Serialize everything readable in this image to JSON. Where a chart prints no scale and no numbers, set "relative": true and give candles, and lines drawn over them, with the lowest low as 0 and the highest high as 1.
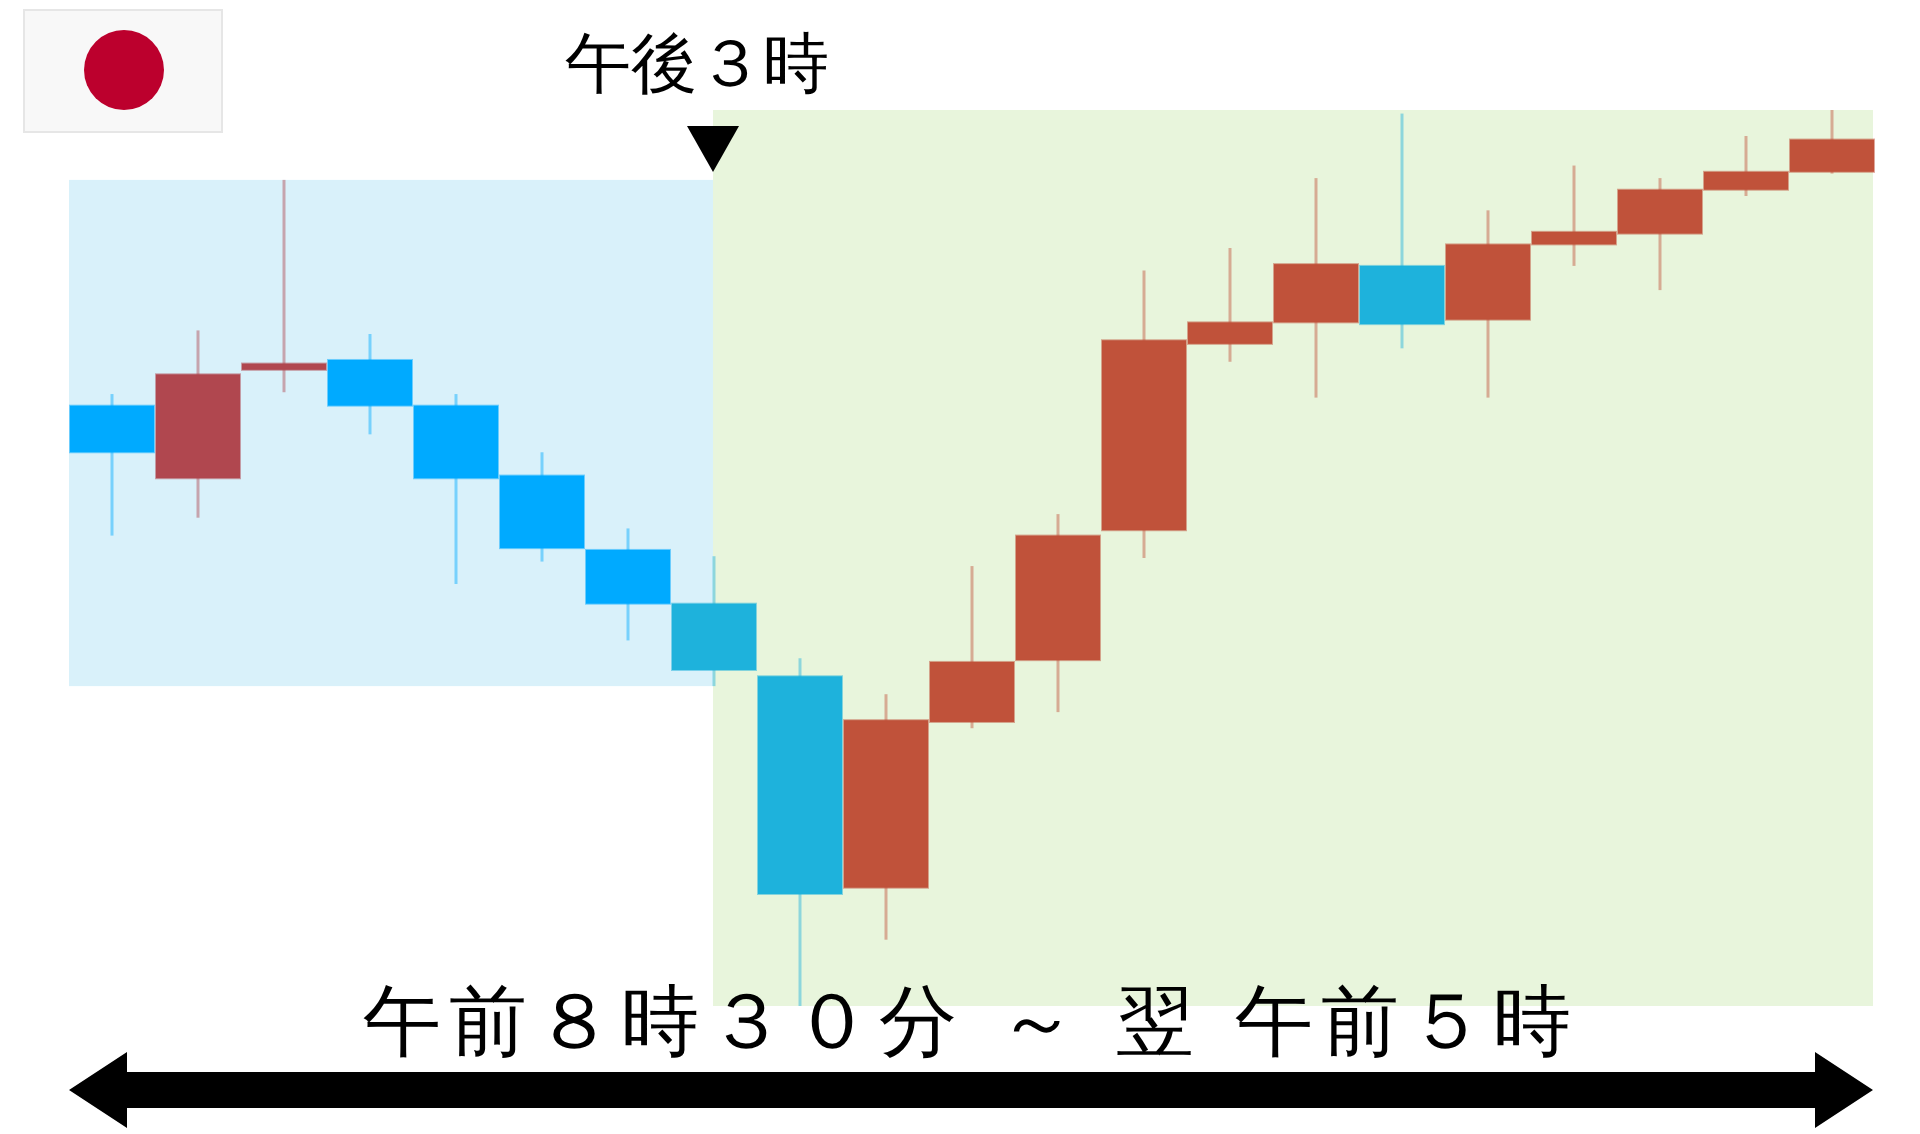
{
  "chart_data": {
    "type": "candlestick",
    "relative": true,
    "annotations": [
      "午後３時",
      "午前８時３０分 ～ 翌 午前５時"
    ],
    "categories": [
      null,
      null,
      null,
      null,
      null,
      null,
      null,
      null,
      null,
      null,
      null,
      null,
      null,
      null,
      null,
      null,
      null,
      null,
      null,
      null,
      null
    ],
    "ohlc": [
      [
        0.67,
        0.683,
        0.525,
        0.618
      ],
      [
        0.589,
        0.754,
        0.545,
        0.705
      ],
      [
        0.71,
        0.922,
        0.685,
        0.717
      ],
      [
        0.721,
        0.75,
        0.638,
        0.67
      ],
      [
        0.67,
        0.683,
        0.471,
        0.589
      ],
      [
        0.592,
        0.618,
        0.496,
        0.511
      ],
      [
        0.509,
        0.533,
        0.408,
        0.449
      ],
      [
        0.449,
        0.502,
        0.357,
        0.375
      ],
      [
        0.368,
        0.388,
        0,
        0.125
      ],
      [
        0.132,
        0.348,
        0.074,
        0.319
      ],
      [
        0.317,
        0.491,
        0.31,
        0.384
      ],
      [
        0.386,
        0.549,
        0.328,
        0.525
      ],
      [
        0.531,
        0.821,
        0.5,
        0.743
      ],
      [
        0.739,
        0.846,
        0.719,
        0.763
      ],
      [
        0.763,
        0.924,
        0.679,
        0.828
      ],
      [
        0.826,
        0.996,
        0.734,
        0.761
      ],
      [
        0.766,
        0.888,
        0.679,
        0.85
      ],
      [
        0.85,
        0.938,
        0.826,
        0.864
      ],
      [
        0.862,
        0.924,
        0.799,
        0.911
      ],
      [
        0.911,
        0.971,
        0.904,
        0.931
      ],
      [
        0.931,
        1,
        0.929,
        0.967
      ]
    ],
    "colors": [
      "#00aaff",
      "#b0474f",
      "#b0474f",
      "#00aaff",
      "#00aaff",
      "#00aaff",
      "#00aaff",
      "#1eb2dc",
      "#1eb2dc",
      "#c0523a",
      "#c0523a",
      "#c0523a",
      "#c0523a",
      "#c0523a",
      "#c0523a",
      "#1eb2dc",
      "#c0523a",
      "#c0523a",
      "#c0523a",
      "#c0523a",
      "#c0523a"
    ]
  }
}
